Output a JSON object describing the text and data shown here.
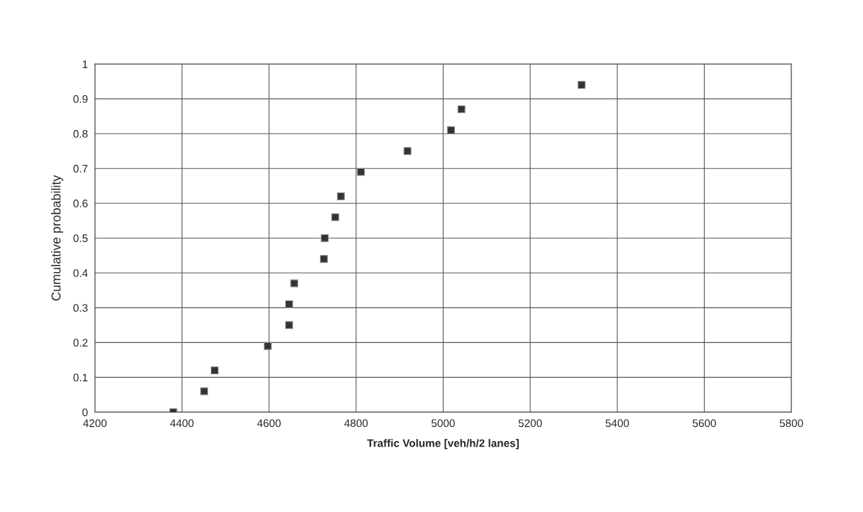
{
  "chart_data": {
    "type": "scatter",
    "xlabel": "Traffic Volume [veh/h/2 lanes]",
    "ylabel": "Cumulative probability",
    "x": [
      4380,
      4451,
      4475,
      4597,
      4646,
      4646,
      4658,
      4726,
      4728,
      4752,
      4765,
      4811,
      4918,
      5018,
      5042,
      5318
    ],
    "values": [
      0,
      0.06,
      0.12,
      0.19,
      0.25,
      0.31,
      0.37,
      0.44,
      0.5,
      0.56,
      0.62,
      0.69,
      0.75,
      0.81,
      0.87,
      0.94
    ],
    "color": "#333333",
    "marker": "square",
    "xlim": [
      4200,
      5800
    ],
    "xticks": [
      4200,
      4400,
      4600,
      4800,
      5000,
      5200,
      5400,
      5600,
      5800
    ],
    "ylim": [
      0,
      1
    ],
    "yticks": [
      0,
      0.1,
      0.2,
      0.3,
      0.4,
      0.5,
      0.6,
      0.7,
      0.8,
      0.9,
      1
    ],
    "grid": true,
    "legend": false
  }
}
